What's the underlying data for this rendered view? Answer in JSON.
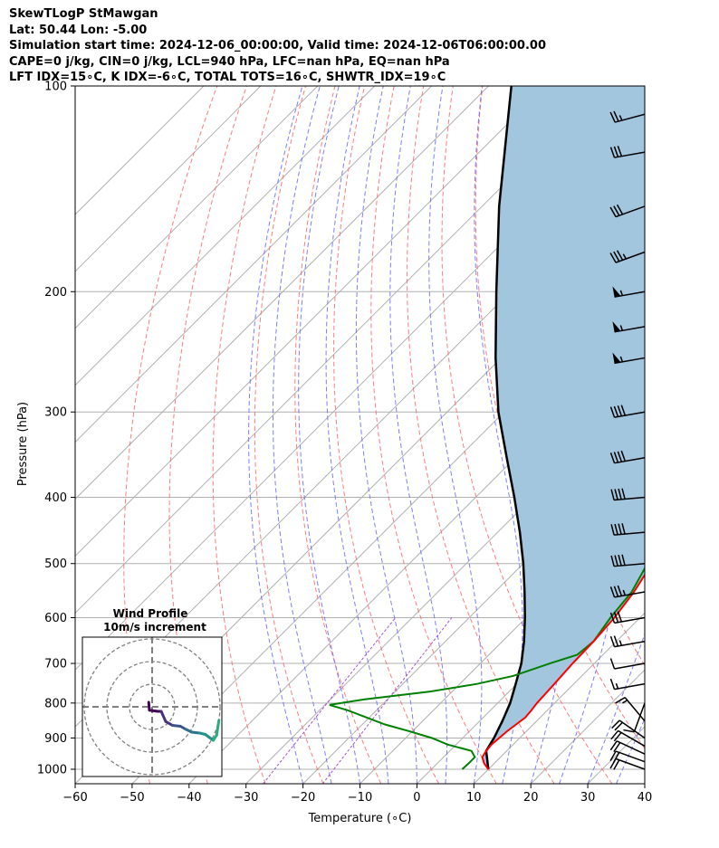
{
  "header": {
    "line1": "SkewTLogP StMawgan",
    "line2": "Lat: 50.44   Lon: -5.00",
    "line3": "Simulation start time: 2024-12-06_00:00:00, Valid time: 2024-12-06T06:00:00.00",
    "line4": "CAPE=0 j/kg, CIN=0 j/kg, LCL=940 hPa, LFC=nan hPa, EQ=nan hPa",
    "line5": "LFT IDX=15∘C, K IDX=-6∘C, TOTAL TOTS=16∘C, SHWTR_IDX=19∘C"
  },
  "chart_data": {
    "type": "line",
    "subtype": "skew-T log-P diagram",
    "xlabel": "Temperature (∘C)",
    "ylabel": "Pressure (hPa)",
    "xlim": [
      -60,
      40
    ],
    "ylim_hpa": [
      1050,
      100
    ],
    "x_ticks": [
      "−60",
      "−50",
      "−40",
      "−30",
      "−20",
      "−10",
      "0",
      "10",
      "20",
      "30",
      "40"
    ],
    "y_ticks": [
      "100",
      "200",
      "300",
      "400",
      "500",
      "600",
      "700",
      "800",
      "900",
      "1000"
    ],
    "y_tick_values": [
      100,
      200,
      300,
      400,
      500,
      600,
      700,
      800,
      900,
      1000
    ],
    "grid": true,
    "colors": {
      "temperature": "#ff0000",
      "dewpoint": "#008000",
      "parcel": "#000000",
      "shade": "#a3c6df",
      "dry_adiabats": "#ff6666",
      "moist_adiabats": "#6666ff",
      "mixing_ratio": "#9933cc",
      "isotherms": "#b0b0b0"
    },
    "series": [
      {
        "role": "temperature",
        "points": [
          [
            1000,
            10.0
          ],
          [
            980,
            8.2
          ],
          [
            960,
            6.8
          ],
          [
            940,
            6.4
          ],
          [
            920,
            6.2
          ],
          [
            900,
            6.4
          ],
          [
            880,
            6.6
          ],
          [
            860,
            7.0
          ],
          [
            840,
            7.4
          ],
          [
            820,
            7.2
          ],
          [
            800,
            6.9
          ],
          [
            750,
            6.6
          ],
          [
            700,
            6.2
          ],
          [
            650,
            6.0
          ],
          [
            600,
            5.5
          ],
          [
            550,
            4.4
          ],
          [
            500,
            2.6
          ],
          [
            450,
            0.0
          ],
          [
            400,
            -1.8
          ],
          [
            350,
            -3.5
          ],
          [
            300,
            -7.6
          ],
          [
            275,
            -11.0
          ],
          [
            250,
            -14.8
          ],
          [
            225,
            -19.6
          ],
          [
            210,
            -22.8
          ],
          [
            200,
            -23.8
          ],
          [
            185,
            -25.8
          ],
          [
            170,
            -27.2
          ],
          [
            160,
            -28.0
          ],
          [
            150,
            -29.4
          ],
          [
            140,
            -31.2
          ],
          [
            130,
            -33.2
          ],
          [
            120,
            -35.8
          ],
          [
            110,
            -39.5
          ],
          [
            100,
            -42.0
          ]
        ]
      },
      {
        "role": "dewpoint",
        "points": [
          [
            1000,
            5.4
          ],
          [
            980,
            5.5
          ],
          [
            960,
            5.5
          ],
          [
            940,
            3.8
          ],
          [
            920,
            -1.5
          ],
          [
            900,
            -5.4
          ],
          [
            880,
            -10.5
          ],
          [
            860,
            -16.0
          ],
          [
            820,
            -25.0
          ],
          [
            805,
            -29.2
          ],
          [
            790,
            -24.0
          ],
          [
            770,
            -14.0
          ],
          [
            750,
            -7.0
          ],
          [
            730,
            -2.0
          ],
          [
            700,
            2.2
          ],
          [
            680,
            5.5
          ],
          [
            650,
            6.0
          ],
          [
            600,
            4.8
          ],
          [
            550,
            4.0
          ],
          [
            500,
            1.8
          ],
          [
            450,
            -1.2
          ],
          [
            400,
            -4.2
          ],
          [
            350,
            -7.3
          ],
          [
            300,
            -14.0
          ],
          [
            275,
            -17.4
          ],
          [
            250,
            -21.5
          ],
          [
            230,
            -24.5
          ],
          [
            210,
            -29.0
          ],
          [
            200,
            -30.5
          ],
          [
            190,
            -30.0
          ],
          [
            175,
            -30.0
          ],
          [
            160,
            -29.6
          ],
          [
            150,
            -28.8
          ],
          [
            140,
            -31.0
          ],
          [
            130,
            -36.0
          ],
          [
            120,
            -41.0
          ],
          [
            110,
            -45.3
          ],
          [
            100,
            -48.0
          ]
        ]
      },
      {
        "role": "parcel",
        "points": [
          [
            1000,
            10.0
          ],
          [
            940,
            6.4
          ],
          [
            900,
            5.5
          ],
          [
            850,
            4.0
          ],
          [
            800,
            2.2
          ],
          [
            750,
            -0.2
          ],
          [
            700,
            -2.8
          ],
          [
            650,
            -6.2
          ],
          [
            600,
            -10.2
          ],
          [
            550,
            -14.8
          ],
          [
            500,
            -20.0
          ],
          [
            450,
            -26.1
          ],
          [
            400,
            -33.2
          ],
          [
            350,
            -41.5
          ],
          [
            300,
            -51.0
          ],
          [
            250,
            -61.0
          ],
          [
            200,
            -72.5
          ],
          [
            150,
            -87.0
          ],
          [
            100,
            -106.0
          ]
        ]
      }
    ],
    "wind_barbs": [
      {
        "p": 1000,
        "speed_kt": 20,
        "dir_deg": 290
      },
      {
        "p": 975,
        "speed_kt": 20,
        "dir_deg": 290
      },
      {
        "p": 950,
        "speed_kt": 20,
        "dir_deg": 295
      },
      {
        "p": 925,
        "speed_kt": 20,
        "dir_deg": 300
      },
      {
        "p": 900,
        "speed_kt": 20,
        "dir_deg": 305
      },
      {
        "p": 850,
        "speed_kt": 15,
        "dir_deg": 320
      },
      {
        "p": 800,
        "speed_kt": 10,
        "dir_deg": 200
      },
      {
        "p": 750,
        "speed_kt": 15,
        "dir_deg": 260
      },
      {
        "p": 700,
        "speed_kt": 10,
        "dir_deg": 260
      },
      {
        "p": 650,
        "speed_kt": 25,
        "dir_deg": 260
      },
      {
        "p": 600,
        "speed_kt": 30,
        "dir_deg": 260
      },
      {
        "p": 550,
        "speed_kt": 35,
        "dir_deg": 260
      },
      {
        "p": 500,
        "speed_kt": 40,
        "dir_deg": 265
      },
      {
        "p": 450,
        "speed_kt": 40,
        "dir_deg": 265
      },
      {
        "p": 400,
        "speed_kt": 40,
        "dir_deg": 265
      },
      {
        "p": 350,
        "speed_kt": 40,
        "dir_deg": 260
      },
      {
        "p": 300,
        "speed_kt": 40,
        "dir_deg": 260
      },
      {
        "p": 250,
        "speed_kt": 55,
        "dir_deg": 260
      },
      {
        "p": 225,
        "speed_kt": 55,
        "dir_deg": 260
      },
      {
        "p": 200,
        "speed_kt": 55,
        "dir_deg": 260
      },
      {
        "p": 175,
        "speed_kt": 35,
        "dir_deg": 250
      },
      {
        "p": 150,
        "speed_kt": 30,
        "dir_deg": 250
      },
      {
        "p": 125,
        "speed_kt": 30,
        "dir_deg": 260
      },
      {
        "p": 110,
        "speed_kt": 25,
        "dir_deg": 255
      }
    ],
    "inset": {
      "title": "Wind Profile",
      "subtitle": "10m/s increment",
      "ring_spacing_ms": 10,
      "hodograph_uv_ms": [
        [
          -1.5,
          2.0
        ],
        [
          -1.2,
          -1.5
        ],
        [
          2.5,
          -2.0
        ],
        [
          4.0,
          -2.0
        ],
        [
          6.0,
          -6.5
        ],
        [
          9.0,
          -8.2
        ],
        [
          12.5,
          -8.6
        ],
        [
          15.0,
          -10.0
        ],
        [
          17.5,
          -11.2
        ],
        [
          21.0,
          -11.6
        ],
        [
          23.5,
          -12.2
        ],
        [
          27.0,
          -14.8
        ],
        [
          28.5,
          -12.5
        ],
        [
          29.5,
          -6.0
        ]
      ]
    }
  }
}
